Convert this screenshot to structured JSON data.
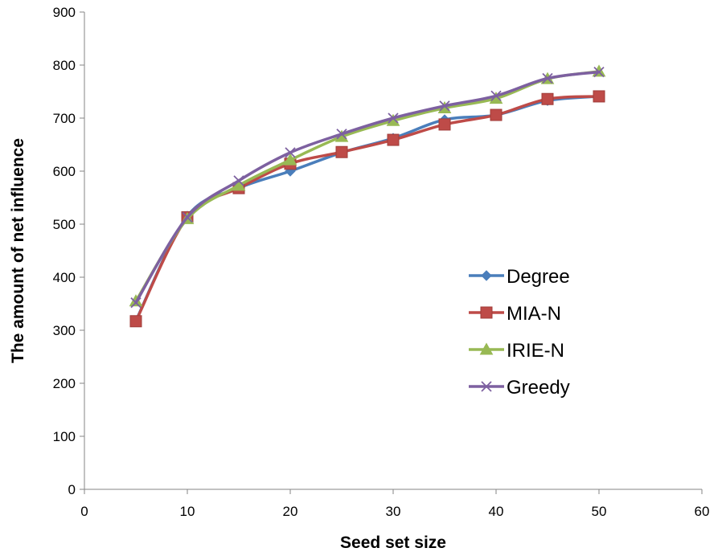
{
  "chart_data": {
    "type": "line",
    "title": "",
    "xlabel": "Seed set size",
    "ylabel": "The amount of net influence",
    "xlim": [
      0,
      60
    ],
    "ylim": [
      0,
      900
    ],
    "xticks": [
      0,
      10,
      20,
      30,
      40,
      50,
      60
    ],
    "yticks": [
      0,
      100,
      200,
      300,
      400,
      500,
      600,
      700,
      800,
      900
    ],
    "grid": false,
    "legend_position": "center-right",
    "x": [
      5,
      10,
      15,
      20,
      25,
      30,
      35,
      40,
      45,
      50
    ],
    "series": [
      {
        "name": "Degree",
        "color": "#4a7ebb",
        "marker": "diamond",
        "values": [
          318,
          515,
          568,
          600,
          635,
          662,
          697,
          706,
          733,
          741
        ]
      },
      {
        "name": "MIA-N",
        "color": "#be4b48",
        "marker": "square",
        "values": [
          317,
          513,
          568,
          614,
          636,
          659,
          688,
          706,
          736,
          741
        ]
      },
      {
        "name": "IRIE-N",
        "color": "#98b954",
        "marker": "triangle",
        "values": [
          355,
          510,
          573,
          621,
          665,
          695,
          719,
          737,
          774,
          788
        ]
      },
      {
        "name": "Greedy",
        "color": "#7d60a0",
        "marker": "x",
        "values": [
          352,
          513,
          582,
          635,
          670,
          700,
          723,
          742,
          775,
          787
        ]
      }
    ]
  }
}
